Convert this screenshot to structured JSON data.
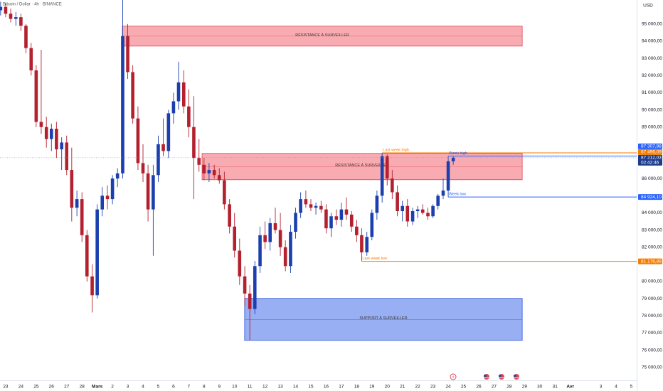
{
  "header": {
    "symbol": "Bitcoin / Dollar · 4h · BINANCE"
  },
  "chart_data": {
    "type": "candlestick",
    "currency": "USD",
    "xlim": [
      -0.37,
      41.35
    ],
    "ylim": [
      74700,
      96400
    ],
    "xticks": [
      {
        "value": 0,
        "label": "23"
      },
      {
        "value": 1,
        "label": "24"
      },
      {
        "value": 2,
        "label": "25"
      },
      {
        "value": 3,
        "label": "26"
      },
      {
        "value": 4,
        "label": "27"
      },
      {
        "value": 5,
        "label": "28"
      },
      {
        "value": 6,
        "label": "Mars"
      },
      {
        "value": 7,
        "label": "2"
      },
      {
        "value": 8,
        "label": "3"
      },
      {
        "value": 9,
        "label": "4"
      },
      {
        "value": 10,
        "label": "5"
      },
      {
        "value": 11,
        "label": "6"
      },
      {
        "value": 12,
        "label": "7"
      },
      {
        "value": 13,
        "label": "8"
      },
      {
        "value": 14,
        "label": "9"
      },
      {
        "value": 15,
        "label": "10"
      },
      {
        "value": 16,
        "label": "11"
      },
      {
        "value": 17,
        "label": "12"
      },
      {
        "value": 18,
        "label": "13"
      },
      {
        "value": 19,
        "label": "14"
      },
      {
        "value": 20,
        "label": "15"
      },
      {
        "value": 21,
        "label": "16"
      },
      {
        "value": 22,
        "label": "17"
      },
      {
        "value": 23,
        "label": "18"
      },
      {
        "value": 24,
        "label": "19"
      },
      {
        "value": 25,
        "label": "20"
      },
      {
        "value": 26,
        "label": "21"
      },
      {
        "value": 27,
        "label": "22"
      },
      {
        "value": 28,
        "label": "23"
      },
      {
        "value": 29,
        "label": "24"
      },
      {
        "value": 30,
        "label": "25"
      },
      {
        "value": 31,
        "label": "26"
      },
      {
        "value": 32,
        "label": "27"
      },
      {
        "value": 33,
        "label": "28"
      },
      {
        "value": 34,
        "label": "29"
      },
      {
        "value": 35,
        "label": "30"
      },
      {
        "value": 36,
        "label": "31"
      },
      {
        "value": 37,
        "label": "Avr"
      },
      {
        "value": 39,
        "label": "3"
      },
      {
        "value": 40,
        "label": "4"
      },
      {
        "value": 41,
        "label": "5"
      }
    ],
    "yticks": [
      {
        "value": 95000,
        "label": "95 000,00"
      },
      {
        "value": 94000,
        "label": "94 000,00"
      },
      {
        "value": 93000,
        "label": "93 000,00"
      },
      {
        "value": 92000,
        "label": "92 000,00"
      },
      {
        "value": 91000,
        "label": "91 000,00"
      },
      {
        "value": 90000,
        "label": "90 000,00"
      },
      {
        "value": 89000,
        "label": "89 000,00"
      },
      {
        "value": 86000,
        "label": "86 000,00"
      },
      {
        "value": 84000,
        "label": "84 000,00"
      },
      {
        "value": 83000,
        "label": "83 000,00"
      },
      {
        "value": 82000,
        "label": "82 000,00"
      },
      {
        "value": 80000,
        "label": "80 000,00"
      },
      {
        "value": 79000,
        "label": "79 000,00"
      },
      {
        "value": 78000,
        "label": "78 000,00"
      },
      {
        "value": 77000,
        "label": "77 000,00"
      },
      {
        "value": 76000,
        "label": "76 000,00"
      },
      {
        "value": 75000,
        "label": "75 000,00"
      }
    ],
    "up_color": "#1c3fae",
    "down_color": "#b3202e",
    "candles": [
      [
        -0.33,
        95800,
        96300,
        95500,
        96000
      ],
      [
        0,
        96000,
        96200,
        95400,
        95600
      ],
      [
        0.33,
        95600,
        95900,
        95100,
        95300
      ],
      [
        0.67,
        95300,
        95700,
        94900,
        95400
      ],
      [
        1,
        95400,
        95600,
        94600,
        94900
      ],
      [
        1.33,
        94900,
        95000,
        93300,
        93600
      ],
      [
        1.67,
        93600,
        93900,
        92000,
        92300
      ],
      [
        2,
        92300,
        92600,
        89000,
        89300
      ],
      [
        2.33,
        89300,
        93500,
        88600,
        89000
      ],
      [
        2.67,
        89000,
        89600,
        87800,
        88300
      ],
      [
        3,
        88300,
        89200,
        87600,
        88900
      ],
      [
        3.33,
        88900,
        89300,
        87200,
        87700
      ],
      [
        3.67,
        87700,
        88400,
        86500,
        88100
      ],
      [
        4,
        88100,
        88500,
        86200,
        86500
      ],
      [
        4.33,
        86500,
        87800,
        83500,
        84300
      ],
      [
        4.67,
        84300,
        85300,
        83800,
        84800
      ],
      [
        5,
        84800,
        85200,
        82300,
        82700
      ],
      [
        5.33,
        82700,
        83000,
        80000,
        80300
      ],
      [
        5.67,
        80300,
        81000,
        78200,
        79200
      ],
      [
        6,
        79200,
        84500,
        79000,
        84200
      ],
      [
        6.33,
        84200,
        85500,
        83800,
        85000
      ],
      [
        6.67,
        85000,
        85600,
        84200,
        84800
      ],
      [
        7,
        84800,
        86200,
        84500,
        86000
      ],
      [
        7.33,
        86000,
        86600,
        85500,
        86300
      ],
      [
        7.67,
        86300,
        96400,
        86000,
        94300
      ],
      [
        8,
        94300,
        95000,
        91800,
        92200
      ],
      [
        8.33,
        92200,
        92600,
        89200,
        89500
      ],
      [
        8.67,
        89500,
        90200,
        86500,
        86900
      ],
      [
        9,
        86900,
        88000,
        85800,
        86300
      ],
      [
        9.33,
        86300,
        86800,
        83500,
        84200
      ],
      [
        9.67,
        84200,
        86800,
        81500,
        86200
      ],
      [
        10,
        86200,
        88500,
        85800,
        88000
      ],
      [
        10.33,
        88000,
        89500,
        87300,
        87600
      ],
      [
        10.67,
        87600,
        90000,
        87200,
        89800
      ],
      [
        11,
        89800,
        91000,
        89200,
        90500
      ],
      [
        11.33,
        90500,
        92800,
        90000,
        91600
      ],
      [
        11.67,
        91600,
        92300,
        89800,
        90200
      ],
      [
        12,
        90200,
        91200,
        88400,
        89000
      ],
      [
        12.33,
        89000,
        90800,
        84800,
        87200
      ],
      [
        12.67,
        87200,
        88300,
        86400,
        86800
      ],
      [
        13,
        86800,
        87200,
        85900,
        86300
      ],
      [
        13.33,
        86300,
        86900,
        85800,
        86500
      ],
      [
        13.67,
        86500,
        86800,
        86000,
        86200
      ],
      [
        14,
        86200,
        86600,
        85700,
        85900
      ],
      [
        14.33,
        85900,
        86400,
        84200,
        84500
      ],
      [
        14.67,
        84500,
        84800,
        82800,
        83200
      ],
      [
        15,
        83200,
        84000,
        81400,
        81800
      ],
      [
        15.33,
        81800,
        82500,
        79800,
        80300
      ],
      [
        15.67,
        80300,
        80900,
        78600,
        79300
      ],
      [
        16,
        79300,
        79800,
        76600,
        78400
      ],
      [
        16.33,
        78400,
        81200,
        78100,
        80900
      ],
      [
        16.67,
        80900,
        83200,
        80500,
        82700
      ],
      [
        17,
        82700,
        83500,
        81900,
        82300
      ],
      [
        17.33,
        82300,
        83700,
        81800,
        83400
      ],
      [
        17.67,
        83400,
        84300,
        82800,
        83000
      ],
      [
        18,
        83000,
        84000,
        81500,
        82000
      ],
      [
        18.33,
        82000,
        82400,
        80600,
        80900
      ],
      [
        18.67,
        80900,
        83300,
        80500,
        82900
      ],
      [
        19,
        82900,
        84300,
        82500,
        84000
      ],
      [
        19.33,
        84000,
        85200,
        83700,
        84800
      ],
      [
        19.67,
        84800,
        85300,
        84300,
        84500
      ],
      [
        20,
        84500,
        84800,
        84100,
        84300
      ],
      [
        20.33,
        84300,
        84600,
        83900,
        84400
      ],
      [
        20.67,
        84400,
        84700,
        84000,
        84200
      ],
      [
        21,
        84200,
        84500,
        82800,
        83100
      ],
      [
        21.33,
        83100,
        84000,
        82600,
        83800
      ],
      [
        21.67,
        83800,
        84200,
        83300,
        83600
      ],
      [
        22,
        83600,
        84600,
        83200,
        84200
      ],
      [
        22.33,
        84200,
        84900,
        83600,
        83900
      ],
      [
        22.67,
        83900,
        84100,
        82900,
        83200
      ],
      [
        23,
        83200,
        83600,
        82300,
        82700
      ],
      [
        23.33,
        82700,
        83100,
        81176.89,
        81700
      ],
      [
        23.67,
        81700,
        82900,
        81500,
        82600
      ],
      [
        24,
        82600,
        84200,
        82400,
        84000
      ],
      [
        24.33,
        84000,
        85300,
        83600,
        85000
      ],
      [
        24.67,
        85000,
        87496.09,
        84600,
        87300
      ],
      [
        25,
        87300,
        87400,
        85600,
        86000
      ],
      [
        25.33,
        86000,
        86500,
        84800,
        85200
      ],
      [
        25.67,
        85200,
        85600,
        83800,
        84100
      ],
      [
        26,
        84100,
        84700,
        83500,
        84400
      ],
      [
        26.33,
        84400,
        84800,
        83200,
        83500
      ],
      [
        26.67,
        83500,
        84300,
        83300,
        84100
      ],
      [
        27,
        84100,
        84400,
        83700,
        84200
      ],
      [
        27.33,
        84200,
        84500,
        83900,
        84000
      ],
      [
        27.67,
        84000,
        84300,
        83600,
        83800
      ],
      [
        28,
        83800,
        84500,
        83700,
        84400
      ],
      [
        28.33,
        84400,
        85100,
        84200,
        85000
      ],
      [
        28.67,
        85000,
        86000,
        84800,
        85300
      ],
      [
        29,
        85300,
        87300,
        84924.1,
        87000
      ],
      [
        29.33,
        87000,
        87307.98,
        86800,
        87212.03
      ]
    ],
    "zones": [
      {
        "label": "RÉSISTANCE À SURVEILLER",
        "low": 93716,
        "high": 94876,
        "start": 7.65,
        "end": 33.85,
        "fill": "#f7a3aa",
        "stroke": "#e04352"
      },
      {
        "label": "RÉSISTANCE À SURVEILLER",
        "low": 85932,
        "high": 87464,
        "start": 12.87,
        "end": 33.85,
        "fill": "#f7a3aa",
        "stroke": "#e04352"
      },
      {
        "label": "SUPPORT À SURVEILLER",
        "low": 76573,
        "high": 79017,
        "start": 15.66,
        "end": 33.85,
        "fill": "#8ea6f3",
        "stroke": "#2b54d8"
      }
    ],
    "levels": [
      {
        "name": "Last week high",
        "value": 87496.09,
        "label": "87 496,09",
        "start": 24.67,
        "color": "#f57c00"
      },
      {
        "name": "Week high",
        "value": 87307.98,
        "label": "87 307,98",
        "start": 29.0,
        "color": "#2962ff"
      },
      {
        "name": "Week low",
        "value": 84924.1,
        "label": "84 924,10",
        "start": 29.0,
        "color": "#2962ff"
      },
      {
        "name": "Last week low",
        "value": 81176.89,
        "label": "81 176,89",
        "start": 23.33,
        "color": "#f57c00"
      }
    ],
    "last_price": {
      "value": 87212.03,
      "label": "87 212,03",
      "countdown": "02:42:46",
      "color": "#1e3a8a"
    }
  }
}
